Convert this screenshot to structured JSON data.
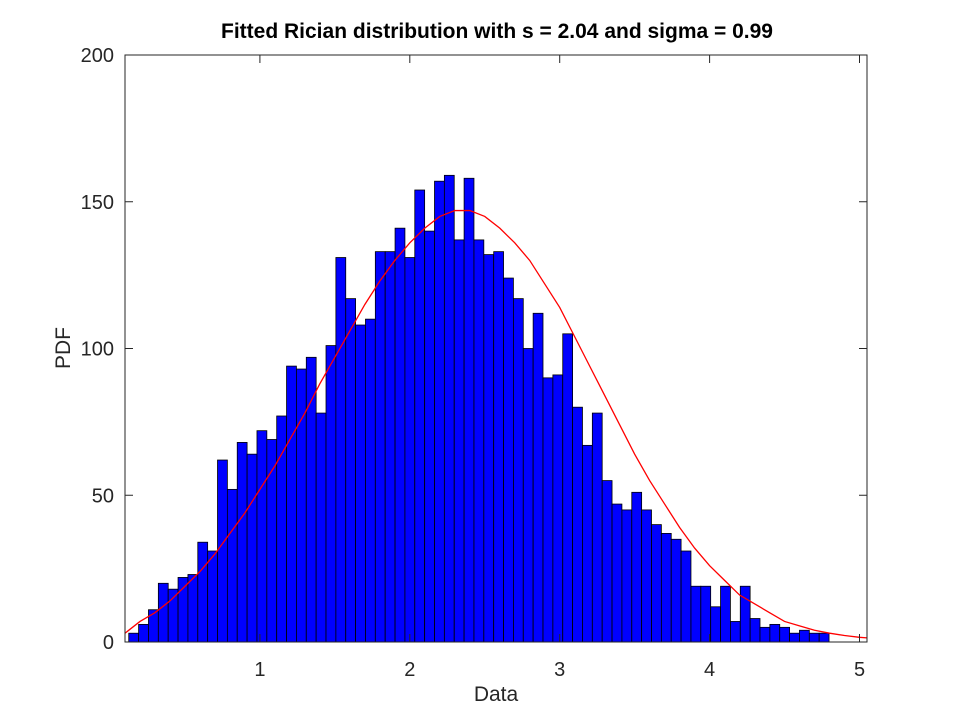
{
  "chart_data": {
    "type": "bar",
    "title": "Fitted Rician distribution with s = 2.04 and sigma = 0.99",
    "xlabel": "Data",
    "ylabel": "PDF",
    "xlim": [
      0.1,
      5.05
    ],
    "ylim": [
      0,
      200
    ],
    "xticks": [
      1,
      2,
      3,
      4,
      5
    ],
    "yticks": [
      0,
      50,
      100,
      150,
      200
    ],
    "grid": false,
    "bin_start": 0.125,
    "bin_width": 0.0658,
    "bar_color": "#0000ff",
    "bar_edge_color": "#000000",
    "values": [
      3,
      6,
      11,
      20,
      18,
      22,
      23,
      34,
      31,
      62,
      52,
      68,
      64,
      72,
      69,
      77,
      94,
      93,
      97,
      78,
      101,
      131,
      117,
      108,
      110,
      133,
      133,
      141,
      131,
      154,
      140,
      157,
      159,
      137,
      158,
      137,
      132,
      133,
      124,
      117,
      100,
      112,
      90,
      91,
      105,
      80,
      67,
      78,
      55,
      47,
      45,
      51,
      45,
      40,
      37,
      35,
      31,
      19,
      19,
      12,
      19,
      7,
      19,
      8,
      5,
      6,
      5,
      3,
      4,
      3,
      3
    ],
    "series": [
      {
        "name": "Fitted Rician",
        "type": "line",
        "color": "#ff0000",
        "x": [
          0.1,
          0.2,
          0.3,
          0.4,
          0.5,
          0.6,
          0.7,
          0.8,
          0.9,
          1.0,
          1.1,
          1.2,
          1.3,
          1.4,
          1.5,
          1.6,
          1.7,
          1.8,
          1.9,
          2.0,
          2.1,
          2.2,
          2.3,
          2.4,
          2.5,
          2.6,
          2.7,
          2.8,
          2.9,
          3.0,
          3.1,
          3.2,
          3.3,
          3.4,
          3.5,
          3.6,
          3.7,
          3.8,
          3.9,
          4.0,
          4.1,
          4.2,
          4.3,
          4.4,
          4.5,
          4.6,
          4.7,
          4.8,
          4.9,
          5.0,
          5.05
        ],
        "y": [
          3,
          7,
          10,
          14,
          19,
          24,
          30,
          37,
          44,
          52,
          60,
          69,
          78,
          88,
          97,
          106,
          115,
          123,
          130,
          136,
          141,
          145,
          147,
          147,
          145,
          141,
          136,
          130,
          122,
          114,
          104,
          94,
          84,
          74,
          64,
          55,
          47,
          39,
          32,
          26,
          21,
          16,
          13,
          10,
          7,
          5.5,
          4,
          3,
          2.2,
          1.6,
          1.4
        ]
      }
    ]
  }
}
